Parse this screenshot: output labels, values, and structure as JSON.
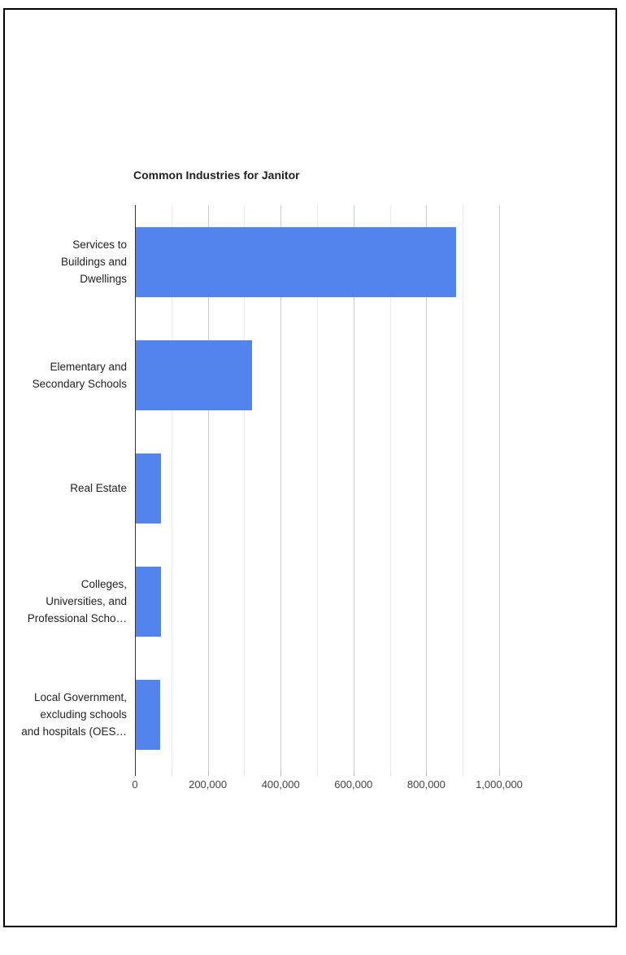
{
  "page": {
    "background": "#ffffff",
    "border_color": "#000000"
  },
  "chart_data": {
    "type": "bar",
    "orientation": "horizontal",
    "title": "Common Industries for Janitor",
    "categories": [
      "Services to\nBuildings and\nDwellings",
      "Elementary and\nSecondary Schools",
      "Real Estate",
      "Colleges,\nUniversities, and\nProfessional Scho…",
      "Local Government,\nexcluding schools\nand hospitals (OES…"
    ],
    "values": [
      880000,
      320000,
      70000,
      70000,
      67000
    ],
    "xlabel": "",
    "ylabel": "",
    "xlim": [
      0,
      1000000
    ],
    "x_tick_interval": 100000,
    "x_label_interval": 200000,
    "x_tick_labels": [
      "0",
      "200,000",
      "400,000",
      "600,000",
      "800,000",
      "1,000,000"
    ],
    "bar_color": "#5383EC",
    "grid": true,
    "legend": "none"
  }
}
